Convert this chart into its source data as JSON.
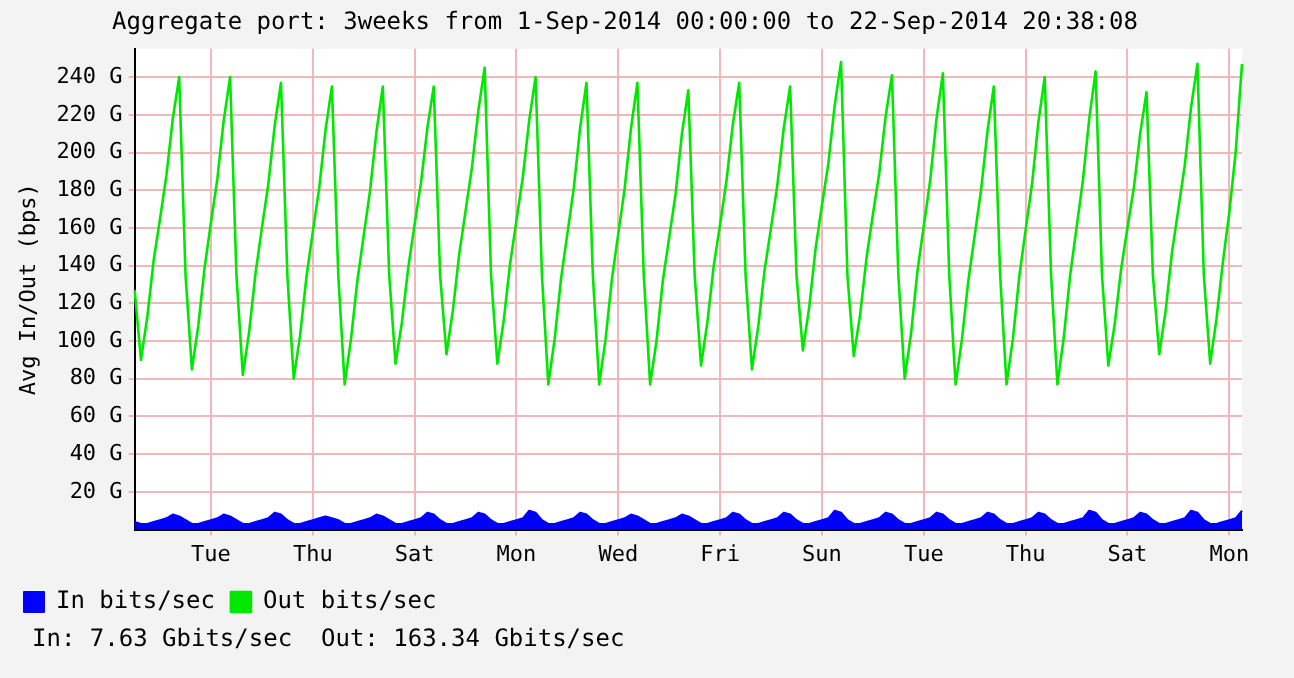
{
  "chart_data": {
    "type": "line",
    "title": "Aggregate port: 3weeks from 1-Sep-2014 00:00:00 to 22-Sep-2014 20:38:08",
    "ylabel": "Avg In/Out (bps)",
    "categories": [
      null,
      null,
      null,
      null,
      null,
      null,
      null,
      null,
      null,
      null,
      null,
      null,
      "Tue",
      null,
      null,
      null,
      null,
      null,
      null,
      null,
      null,
      null,
      null,
      null,
      null,
      null,
      null,
      null,
      "Thu",
      null,
      null,
      null,
      null,
      null,
      null,
      null,
      null,
      null,
      null,
      null,
      null,
      null,
      null,
      null,
      "Sat",
      null,
      null,
      null,
      null,
      null,
      null,
      null,
      null,
      null,
      null,
      null,
      null,
      null,
      null,
      null,
      "Mon",
      null,
      null,
      null,
      null,
      null,
      null,
      null,
      null,
      null,
      null,
      null,
      null,
      null,
      null,
      null,
      "Wed",
      null,
      null,
      null,
      null,
      null,
      null,
      null,
      null,
      null,
      null,
      null,
      null,
      null,
      null,
      null,
      "Fri",
      null,
      null,
      null,
      null,
      null,
      null,
      null,
      null,
      null,
      null,
      null,
      null,
      null,
      null,
      null,
      "Sun",
      null,
      null,
      null,
      null,
      null,
      null,
      null,
      null,
      null,
      null,
      null,
      null,
      null,
      null,
      null,
      "Tue",
      null,
      null,
      null,
      null,
      null,
      null,
      null,
      null,
      null,
      null,
      null,
      null,
      null,
      null,
      null,
      "Thu",
      null,
      null,
      null,
      null,
      null,
      null,
      null,
      null,
      null,
      null,
      null,
      null,
      null,
      null,
      null,
      "Sat",
      null,
      null,
      null,
      null,
      null,
      null,
      null,
      null,
      null,
      null,
      null,
      null,
      null,
      null,
      null,
      "Mon",
      null,
      null
    ],
    "ylim": [
      0,
      255
    ],
    "yticks": [
      {
        "value": 20,
        "label": "20 G"
      },
      {
        "value": 40,
        "label": "40 G"
      },
      {
        "value": 60,
        "label": "60 G"
      },
      {
        "value": 80,
        "label": "80 G"
      },
      {
        "value": 100,
        "label": "100 G"
      },
      {
        "value": 120,
        "label": "120 G"
      },
      {
        "value": 140,
        "label": "140 G"
      },
      {
        "value": 160,
        "label": "160 G"
      },
      {
        "value": 180,
        "label": "180 G"
      },
      {
        "value": 200,
        "label": "200 G"
      },
      {
        "value": 220,
        "label": "220 G"
      },
      {
        "value": 240,
        "label": "240 G"
      }
    ],
    "grid": true,
    "legend": "bottom left",
    "annotations": [
      "In: 7.63 Gbits/sec  Out: 163.34 Gbits/sec"
    ],
    "series": [
      {
        "name": "In bits/sec",
        "type": "area",
        "color": "#0000ff",
        "values": [
          4,
          3,
          3,
          4,
          5,
          6,
          8,
          7,
          5,
          3,
          3,
          4,
          5,
          6,
          8,
          7,
          5,
          3,
          3,
          4,
          5,
          6,
          9,
          8,
          5,
          3,
          3,
          4,
          5,
          6,
          7,
          6,
          5,
          3,
          3,
          4,
          5,
          6,
          8,
          7,
          5,
          3,
          3,
          4,
          5,
          6,
          9,
          8,
          5,
          3,
          3,
          4,
          5,
          6,
          9,
          8,
          5,
          3,
          3,
          4,
          5,
          6,
          10,
          9,
          5,
          3,
          3,
          4,
          5,
          6,
          9,
          8,
          5,
          3,
          3,
          4,
          5,
          6,
          8,
          7,
          5,
          3,
          3,
          4,
          5,
          6,
          8,
          7,
          5,
          3,
          3,
          4,
          5,
          6,
          9,
          8,
          5,
          3,
          3,
          4,
          5,
          6,
          9,
          8,
          5,
          3,
          3,
          4,
          5,
          6,
          10,
          9,
          5,
          3,
          3,
          4,
          5,
          6,
          9,
          8,
          5,
          3,
          3,
          4,
          5,
          6,
          9,
          8,
          5,
          3,
          3,
          4,
          5,
          6,
          9,
          8,
          5,
          3,
          3,
          4,
          5,
          6,
          9,
          8,
          5,
          3,
          3,
          4,
          5,
          6,
          10,
          9,
          5,
          3,
          3,
          4,
          5,
          6,
          9,
          8,
          5,
          3,
          3,
          4,
          5,
          6,
          10,
          9,
          5,
          3,
          3,
          4,
          5,
          6,
          10
        ]
      },
      {
        "name": "Out bits/sec",
        "color": "#00e800",
        "values": [
          127,
          90,
          113,
          143,
          165,
          188,
          218,
          240,
          135,
          85,
          108,
          139,
          163,
          186,
          217,
          240,
          135,
          82,
          105,
          136,
          160,
          183,
          214,
          237,
          135,
          80,
          103,
          134,
          158,
          181,
          212,
          235,
          135,
          77,
          101,
          132,
          156,
          180,
          211,
          235,
          135,
          88,
          110,
          139,
          162,
          184,
          213,
          235,
          135,
          93,
          116,
          146,
          169,
          192,
          222,
          245,
          135,
          88,
          111,
          141,
          164,
          187,
          217,
          240,
          135,
          77,
          101,
          133,
          157,
          181,
          213,
          237,
          135,
          77,
          101,
          133,
          157,
          181,
          213,
          237,
          135,
          77,
          100,
          132,
          155,
          178,
          210,
          233,
          135,
          87,
          110,
          140,
          162,
          185,
          215,
          237,
          135,
          85,
          108,
          138,
          160,
          183,
          213,
          235,
          135,
          95,
          118,
          149,
          172,
          194,
          225,
          248,
          135,
          92,
          114,
          144,
          167,
          189,
          219,
          241,
          135,
          80,
          104,
          137,
          161,
          185,
          218,
          242,
          135,
          77,
          101,
          132,
          156,
          180,
          211,
          235,
          135,
          77,
          101,
          134,
          159,
          183,
          216,
          240,
          135,
          77,
          102,
          135,
          160,
          185,
          218,
          243,
          135,
          87,
          109,
          138,
          160,
          181,
          210,
          232,
          135,
          93,
          116,
          147,
          170,
          193,
          224,
          247,
          135,
          88,
          112,
          142,
          168,
          200,
          247
        ]
      }
    ]
  }
}
